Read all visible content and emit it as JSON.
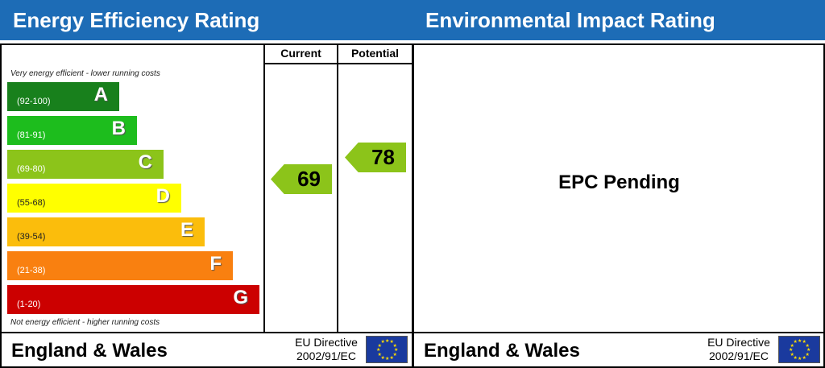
{
  "chart_data": {
    "type": "table",
    "panels": [
      {
        "title": "Energy Efficiency Rating",
        "columns": [
          "Current",
          "Potential"
        ],
        "top_note": "Very energy efficient - lower running costs",
        "bottom_note": "Not energy efficient - higher running costs",
        "bands": [
          {
            "letter": "A",
            "range": "(92-100)",
            "color": "#18801c"
          },
          {
            "letter": "B",
            "range": "(81-91)",
            "color": "#1dbd1d"
          },
          {
            "letter": "C",
            "range": "(69-80)",
            "color": "#8cc41a"
          },
          {
            "letter": "D",
            "range": "(55-68)",
            "color": "#ffff00"
          },
          {
            "letter": "E",
            "range": "(39-54)",
            "color": "#fbbd0c"
          },
          {
            "letter": "F",
            "range": "(21-38)",
            "color": "#f98010"
          },
          {
            "letter": "G",
            "range": "(1-20)",
            "color": "#cc0000"
          }
        ],
        "current": {
          "value": "69",
          "band": "C"
        },
        "potential": {
          "value": "78",
          "band": "C"
        },
        "footer": {
          "region": "England & Wales",
          "directive_line1": "EU Directive",
          "directive_line2": "2002/91/EC"
        }
      },
      {
        "title": "Environmental Impact Rating",
        "status": "EPC Pending",
        "footer": {
          "region": "England & Wales",
          "directive_line1": "EU Directive",
          "directive_line2": "2002/91/EC"
        }
      }
    ]
  }
}
